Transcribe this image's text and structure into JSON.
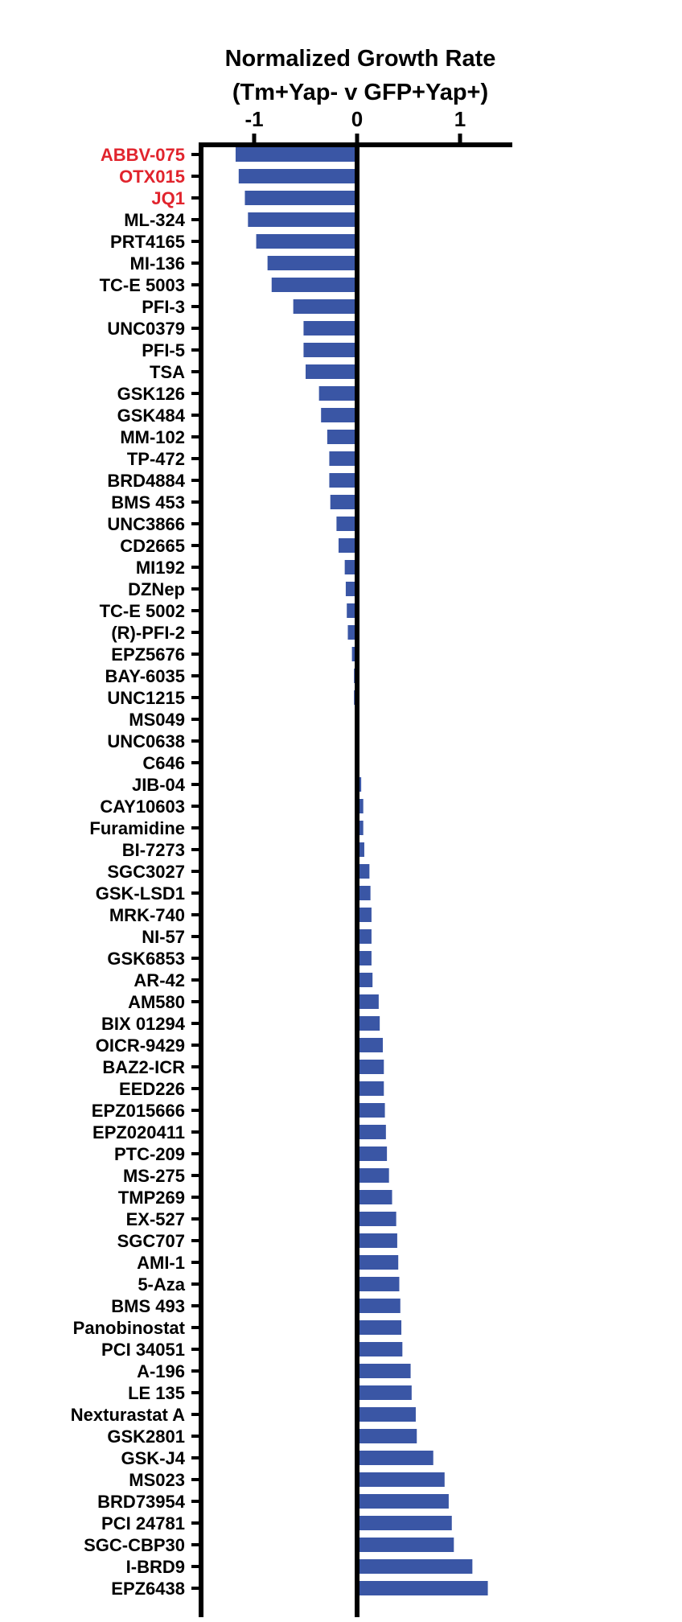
{
  "chart_data": {
    "type": "bar",
    "orientation": "horizontal",
    "title": "Normalized Growth Rate",
    "subtitle": "(Tm+Yap- v GFP+Yap+)",
    "xlabel": "",
    "ylabel": "",
    "xlim": [
      -1.5,
      1.5
    ],
    "xticks": [
      -1,
      0,
      1
    ],
    "xtick_labels": [
      "-1",
      "0",
      "1"
    ],
    "axis_position": "top",
    "grid": false,
    "bar_color": "#3a56a5",
    "highlight_color": "#e1242d",
    "label_color": "#000000",
    "highlighted": [
      "ABBV-075",
      "OTX015",
      "JQ1"
    ],
    "categories": [
      "ABBV-075",
      "OTX015",
      "JQ1",
      "ML-324",
      "PRT4165",
      "MI-136",
      "TC-E 5003",
      "PFI-3",
      "UNC0379",
      "PFI-5",
      "TSA",
      "GSK126",
      "GSK484",
      "MM-102",
      "TP-472",
      "BRD4884",
      "BMS 453",
      "UNC3866",
      "CD2665",
      "MI192",
      "DZNep",
      "TC-E 5002",
      "(R)-PFI-2",
      "EPZ5676",
      "BAY-6035",
      "UNC1215",
      "MS049",
      "UNC0638",
      "C646",
      "JIB-04",
      "CAY10603",
      "Furamidine",
      "BI-7273",
      "SGC3027",
      "GSK-LSD1",
      "MRK-740",
      "NI-57",
      "GSK6853",
      "AR-42",
      "AM580",
      "BIX 01294",
      "OICR-9429",
      "BAZ2-ICR",
      "EED226",
      "EPZ015666",
      "EPZ020411",
      "PTC-209",
      "MS-275",
      "TMP269",
      "EX-527",
      "SGC707",
      "AMI-1",
      "5-Aza",
      "BMS 493",
      "Panobinostat",
      "PCI 34051",
      "A-196",
      "LE 135",
      "Nexturastat A",
      "GSK2801",
      "GSK-J4",
      "MS023",
      "BRD73954",
      "PCI 24781",
      "SGC-CBP30",
      "I-BRD9",
      "EPZ6438"
    ],
    "values": [
      -1.18,
      -1.15,
      -1.09,
      -1.06,
      -0.98,
      -0.87,
      -0.83,
      -0.62,
      -0.52,
      -0.52,
      -0.5,
      -0.37,
      -0.35,
      -0.29,
      -0.27,
      -0.27,
      -0.26,
      -0.2,
      -0.18,
      -0.12,
      -0.11,
      -0.1,
      -0.09,
      -0.05,
      -0.03,
      -0.03,
      0.0,
      0.0,
      0.02,
      0.04,
      0.06,
      0.06,
      0.07,
      0.12,
      0.13,
      0.14,
      0.14,
      0.14,
      0.15,
      0.21,
      0.22,
      0.25,
      0.26,
      0.26,
      0.27,
      0.28,
      0.29,
      0.31,
      0.34,
      0.38,
      0.39,
      0.4,
      0.41,
      0.42,
      0.43,
      0.44,
      0.52,
      0.53,
      0.57,
      0.58,
      0.74,
      0.85,
      0.89,
      0.92,
      0.94,
      1.12,
      1.27
    ]
  }
}
